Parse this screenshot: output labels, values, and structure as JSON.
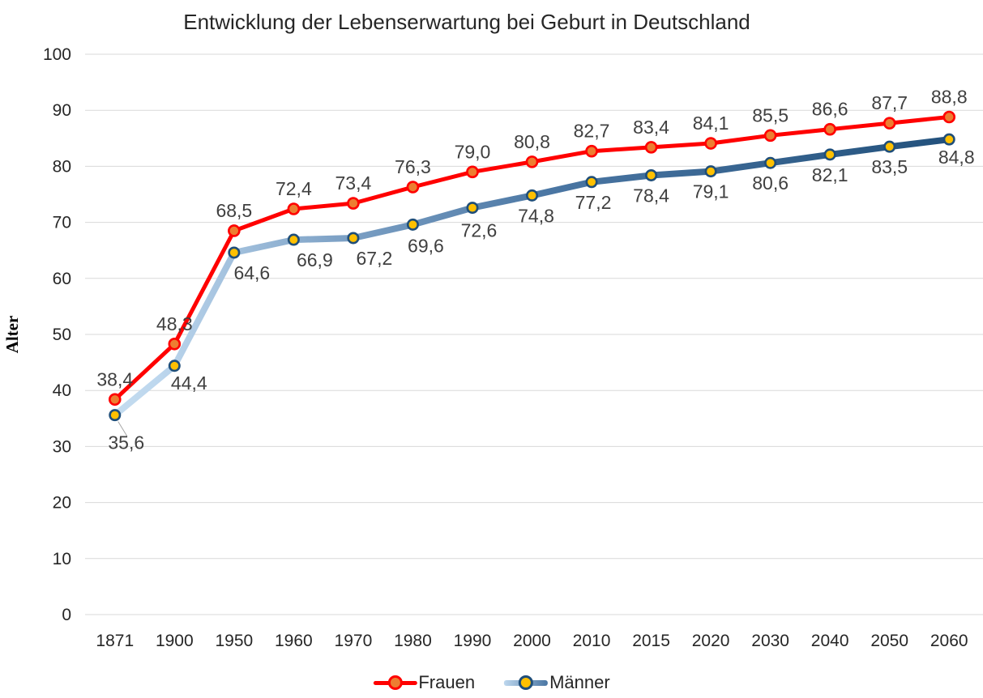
{
  "chart_data": {
    "type": "line",
    "title": "Entwicklung der Lebenserwartung bei Geburt in Deutschland",
    "xlabel": "",
    "ylabel": "Alter",
    "ylim": [
      0,
      100
    ],
    "y_ticks": [
      0,
      10,
      20,
      30,
      40,
      50,
      60,
      70,
      80,
      90,
      100
    ],
    "grid": "horizontal",
    "legend_position": "bottom",
    "decimal_separator": ",",
    "categories": [
      "1871",
      "1900",
      "1950",
      "1960",
      "1970",
      "1980",
      "1990",
      "2000",
      "2010",
      "2015",
      "2020",
      "2030",
      "2040",
      "2050",
      "2060"
    ],
    "series": [
      {
        "name": "Frauen",
        "values": [
          38.4,
          48.3,
          68.5,
          72.4,
          73.4,
          76.3,
          79.0,
          80.8,
          82.7,
          83.4,
          84.1,
          85.5,
          86.6,
          87.7,
          88.8
        ],
        "labels": [
          "38,4",
          "48,3",
          "68,5",
          "72,4",
          "73,4",
          "76,3",
          "79,0",
          "80,8",
          "82,7",
          "83,4",
          "84,1",
          "85,5",
          "86,6",
          "87,7",
          "88,8"
        ],
        "line_color": "#FF0000",
        "marker_fill": "#ED7D31",
        "marker_stroke": "#FF0000"
      },
      {
        "name": "Männer",
        "values": [
          35.6,
          44.4,
          64.6,
          66.9,
          67.2,
          69.6,
          72.6,
          74.8,
          77.2,
          78.4,
          79.1,
          80.6,
          82.1,
          83.5,
          84.8
        ],
        "labels": [
          "35,6",
          "44,4",
          "64,6",
          "66,9",
          "67,2",
          "69,6",
          "72,6",
          "74,8",
          "77,2",
          "78,4",
          "79,1",
          "80,6",
          "82,1",
          "83,5",
          "84,8"
        ],
        "line_gradient": [
          "#C9DFF0",
          "#BDD7EE",
          "#7EA2C6",
          "#4A76A3",
          "#1F4E79"
        ],
        "marker_fill": "#FFC000",
        "marker_stroke": "#1F4E79"
      }
    ],
    "colors": {
      "gridline": "#D9D9D9",
      "data_label": "#404040",
      "tick_label": "#262626",
      "title": "#262626",
      "leader_line": "#A6A6A6"
    }
  }
}
